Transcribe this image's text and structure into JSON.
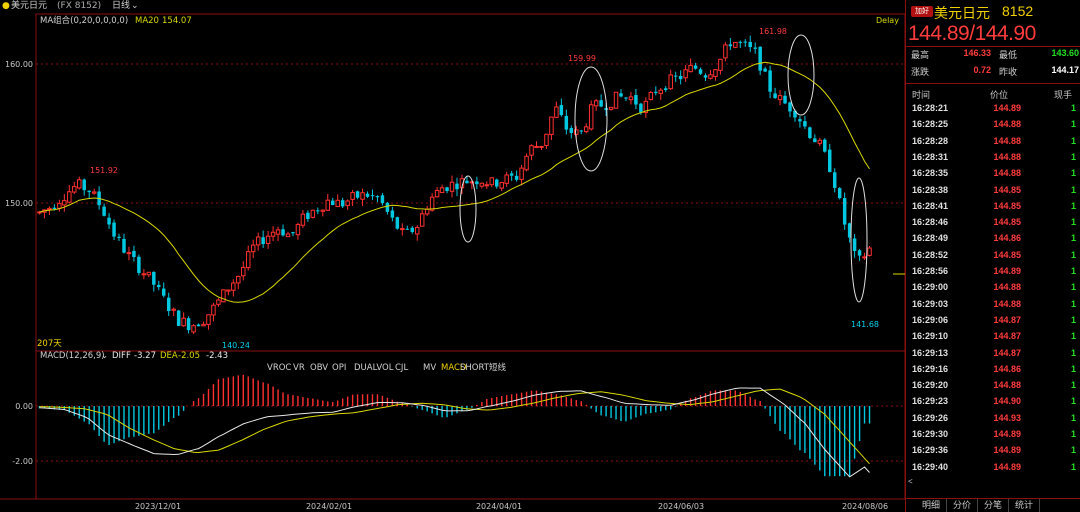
{
  "header": {
    "instrument": "美元日元",
    "code_paren": "(FX 8152)",
    "period": "日线",
    "ma_label": "MA组合(0,20,0,0,0,0)",
    "ma20_label": "MA20",
    "ma20_value": "154.07",
    "delay": "Delay"
  },
  "sub_header": {
    "macd_label": "MACD(12,26,9)",
    "diff_label": "DIFF",
    "diff_value": "-3.27",
    "dea_label": "DEA",
    "dea_value": "-2.05",
    "macd_value": "-2.43",
    "indicator_tabs": [
      "VROC",
      "VR",
      "OBV",
      "OPI",
      "DUALVOL",
      "CJL",
      "MV",
      "MACD",
      "SHORT短线"
    ],
    "active_indicator": "MACD"
  },
  "days_label": "207天",
  "chart_data": {
    "type": "candlestick",
    "price_axis_ticks": [
      "160.00",
      "150.00"
    ],
    "macd_axis_ticks": [
      "0.00",
      "-2.00"
    ],
    "date_ticks": [
      "2023/12/01",
      "2024/02/01",
      "2024/04/01",
      "2024/06/03",
      "2024/08/06"
    ],
    "annotations": [
      {
        "label": "151.92",
        "kind": "high"
      },
      {
        "label": "140.24",
        "kind": "low"
      },
      {
        "label": "159.99",
        "kind": "high"
      },
      {
        "label": "161.98",
        "kind": "high"
      },
      {
        "label": "141.68",
        "kind": "low"
      }
    ],
    "close_path": [
      149.3,
      149.8,
      150.6,
      151.3,
      150.9,
      149.6,
      147.6,
      146.3,
      145.3,
      144.3,
      142.9,
      141.6,
      141.2,
      141.6,
      142.6,
      143.9,
      145.0,
      146.8,
      147.6,
      148.2,
      147.6,
      148.9,
      149.6,
      150.2,
      149.9,
      150.4,
      150.6,
      150.3,
      148.8,
      147.6,
      148.3,
      150.2,
      151.1,
      151.4,
      151.6,
      151.7,
      151.4,
      151.7,
      151.9,
      153.9,
      154.3,
      156.9,
      155.2,
      154.9,
      156.9,
      157.1,
      157.6,
      157.6,
      156.8,
      158.1,
      158.7,
      159.1,
      159.8,
      159.3,
      160.1,
      161.7,
      161.3,
      160.7,
      158.3,
      157.3,
      156.7,
      155.3,
      154.2,
      152.3,
      148.6,
      145.6,
      146.7
    ],
    "macd_dea_path": [
      -0.02,
      -0.05,
      -0.1,
      -0.3,
      -0.8,
      -1.2,
      -1.55,
      -1.7,
      -1.6,
      -1.25,
      -0.85,
      -0.55,
      -0.4,
      -0.3,
      -0.25,
      -0.1,
      0.05,
      0.1,
      0.05,
      -0.1,
      -0.15,
      -0.05,
      0.1,
      0.3,
      0.45,
      0.52,
      0.4,
      0.2,
      0.1,
      0.05,
      0.15,
      0.35,
      0.55,
      0.62,
      0.3,
      -0.3,
      -1.2,
      -2.1
    ],
    "colors": {
      "up": "#ff3030",
      "down": "#00c8e0",
      "ma": "#d8d800",
      "dea": "#d8d800",
      "diff": "#e8e8e8"
    }
  },
  "quote_panel": {
    "badge": "加好",
    "name": "美元日元",
    "code": "8152",
    "quote": "144.89/144.90",
    "stats": [
      {
        "label": "最高",
        "value": "146.33",
        "color": "#ff3c3c"
      },
      {
        "label": "最低",
        "value": "143.60",
        "color": "#20e020"
      },
      {
        "label": "涨跌",
        "value": "0.72",
        "color": "#ff3c3c"
      },
      {
        "label": "昨收",
        "value": "144.17",
        "color": "#ffffff"
      }
    ],
    "columns": [
      "时间",
      "价位",
      "现手"
    ],
    "trades": [
      {
        "time": "16:28:21",
        "price": "144.89",
        "vol": "1"
      },
      {
        "time": "16:28:25",
        "price": "144.88",
        "vol": "1"
      },
      {
        "time": "16:28:28",
        "price": "144.88",
        "vol": "1"
      },
      {
        "time": "16:28:31",
        "price": "144.88",
        "vol": "1"
      },
      {
        "time": "16:28:35",
        "price": "144.88",
        "vol": "1"
      },
      {
        "time": "16:28:38",
        "price": "144.85",
        "vol": "1"
      },
      {
        "time": "16:28:41",
        "price": "144.85",
        "vol": "1"
      },
      {
        "time": "16:28:46",
        "price": "144.85",
        "vol": "1"
      },
      {
        "time": "16:28:49",
        "price": "144.86",
        "vol": "1"
      },
      {
        "time": "16:28:52",
        "price": "144.85",
        "vol": "1"
      },
      {
        "time": "16:28:56",
        "price": "144.89",
        "vol": "1"
      },
      {
        "time": "16:29:00",
        "price": "144.88",
        "vol": "1"
      },
      {
        "time": "16:29:03",
        "price": "144.88",
        "vol": "1"
      },
      {
        "time": "16:29:06",
        "price": "144.87",
        "vol": "1"
      },
      {
        "time": "16:29:10",
        "price": "144.87",
        "vol": "1"
      },
      {
        "time": "16:29:13",
        "price": "144.87",
        "vol": "1"
      },
      {
        "time": "16:29:16",
        "price": "144.86",
        "vol": "1"
      },
      {
        "time": "16:29:20",
        "price": "144.88",
        "vol": "1"
      },
      {
        "time": "16:29:23",
        "price": "144.90",
        "vol": "1"
      },
      {
        "time": "16:29:26",
        "price": "144.93",
        "vol": "1"
      },
      {
        "time": "16:29:30",
        "price": "144.89",
        "vol": "1"
      },
      {
        "time": "16:29:36",
        "price": "144.89",
        "vol": "1"
      },
      {
        "time": "16:29:40",
        "price": "144.89",
        "vol": "1"
      }
    ],
    "tabs": [
      "明细",
      "分价",
      "分笔",
      "统计"
    ]
  }
}
